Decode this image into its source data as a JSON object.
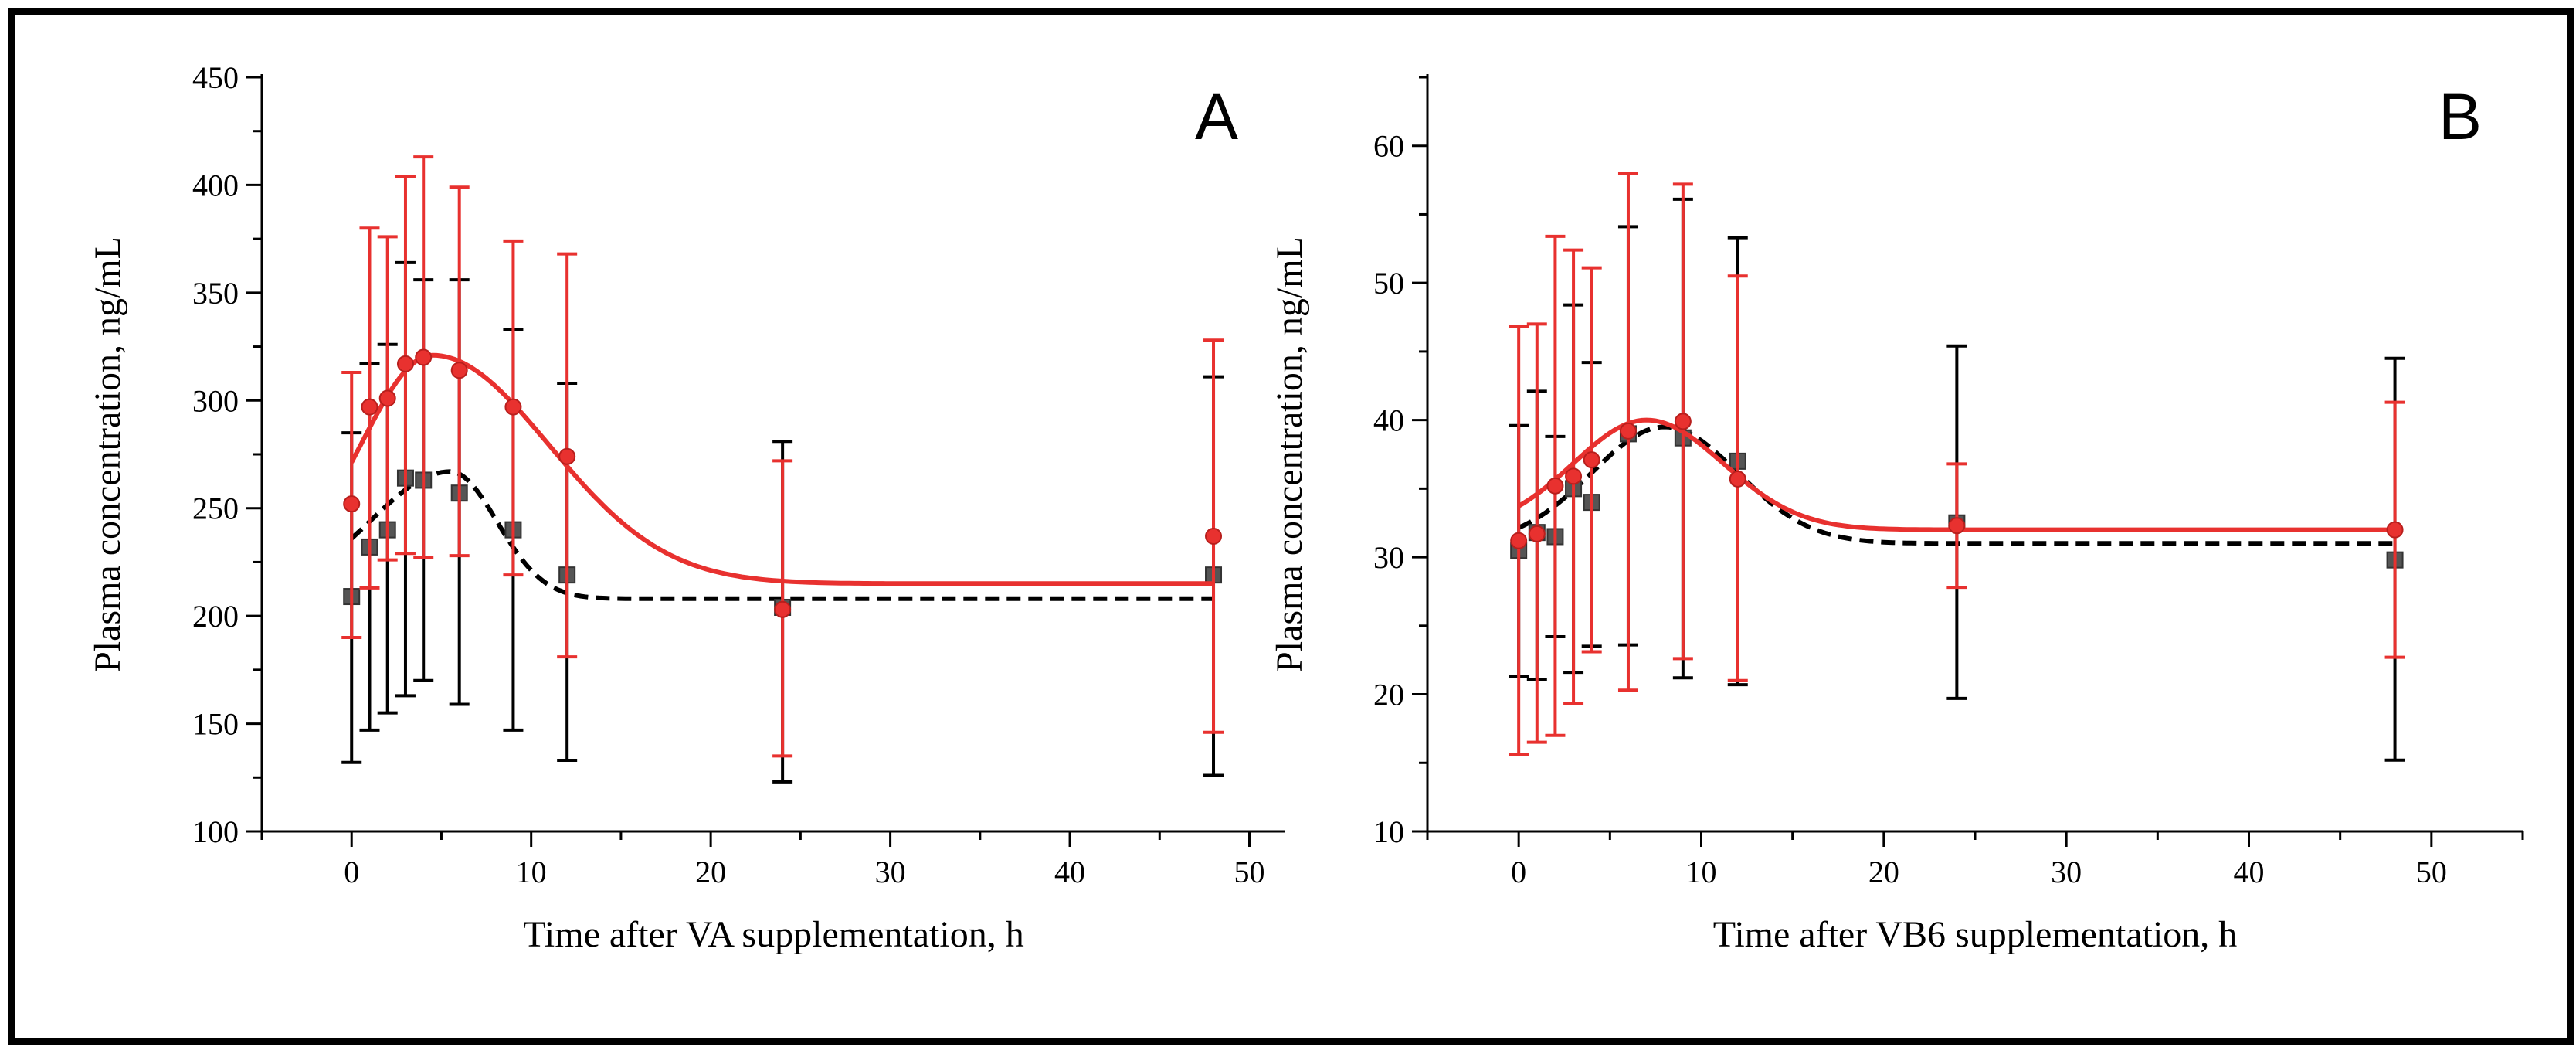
{
  "chart_data": [
    {
      "type": "line",
      "panel_label": "A",
      "xlabel": "Time after VA supplementation, h",
      "ylabel": "Plasma concentration, ng/mL",
      "xlim": [
        -5,
        52
      ],
      "ylim": [
        100,
        450
      ],
      "xticks": [
        0,
        10,
        20,
        30,
        40,
        50
      ],
      "yticks": [
        100,
        150,
        200,
        250,
        300,
        350,
        400,
        450
      ],
      "grid": false,
      "legend": null,
      "series": [
        {
          "color": "#000000",
          "marker": "square",
          "line_style": "dashed",
          "points": [
            {
              "x": 0,
              "y": 209,
              "err_low": 132,
              "err_high": 285
            },
            {
              "x": 1,
              "y": 232,
              "err_low": 147,
              "err_high": 317
            },
            {
              "x": 2,
              "y": 240,
              "err_low": 155,
              "err_high": 326
            },
            {
              "x": 3,
              "y": 264,
              "err_low": 163,
              "err_high": 364
            },
            {
              "x": 4,
              "y": 263,
              "err_low": 170,
              "err_high": 356
            },
            {
              "x": 6,
              "y": 257,
              "err_low": 159,
              "err_high": 356
            },
            {
              "x": 9,
              "y": 240,
              "err_low": 147,
              "err_high": 333
            },
            {
              "x": 12,
              "y": 219,
              "err_low": 133,
              "err_high": 308
            },
            {
              "x": 24,
              "y": 204,
              "err_low": 123,
              "err_high": 281
            },
            {
              "x": 48,
              "y": 219,
              "err_low": 126,
              "err_high": 311
            }
          ],
          "fit": {
            "baseline": 208,
            "amplitude": 59,
            "peak_x": 5.5,
            "rise_width": 4.5,
            "fall_width": 2.6
          }
        },
        {
          "color": "#e8312f",
          "marker": "circle",
          "line_style": "solid",
          "points": [
            {
              "x": 0,
              "y": 252,
              "err_low": 190,
              "err_high": 313
            },
            {
              "x": 1,
              "y": 297,
              "err_low": 213,
              "err_high": 380
            },
            {
              "x": 2,
              "y": 301,
              "err_low": 226,
              "err_high": 376
            },
            {
              "x": 3,
              "y": 317,
              "err_low": 229,
              "err_high": 404
            },
            {
              "x": 4,
              "y": 320,
              "err_low": 227,
              "err_high": 413
            },
            {
              "x": 6,
              "y": 314,
              "err_low": 228,
              "err_high": 399
            },
            {
              "x": 9,
              "y": 297,
              "err_low": 219,
              "err_high": 374
            },
            {
              "x": 12,
              "y": 274,
              "err_low": 181,
              "err_high": 368
            },
            {
              "x": 24,
              "y": 203,
              "err_low": 135,
              "err_high": 272
            },
            {
              "x": 48,
              "y": 237,
              "err_low": 146,
              "err_high": 328
            }
          ],
          "fit": {
            "baseline": 215,
            "amplitude": 106,
            "peak_x": 4.5,
            "rise_width": 4.0,
            "fall_width": 6.5
          }
        }
      ]
    },
    {
      "type": "line",
      "panel_label": "B",
      "xlabel": "Time after VB6 supplementation, h",
      "ylabel": "Plasma concentration, ng/mL",
      "xlim": [
        -5,
        55
      ],
      "ylim": [
        10,
        65
      ],
      "xticks": [
        0,
        10,
        20,
        30,
        40,
        50
      ],
      "yticks": [
        10,
        20,
        30,
        40,
        50,
        60
      ],
      "grid": false,
      "legend": null,
      "series": [
        {
          "color": "#000000",
          "marker": "square",
          "line_style": "dashed",
          "points": [
            {
              "x": 0,
              "y": 30.5,
              "err_low": 21.3,
              "err_high": 39.6
            },
            {
              "x": 1,
              "y": 31.8,
              "err_low": 21.1,
              "err_high": 42.1
            },
            {
              "x": 2,
              "y": 31.5,
              "err_low": 24.2,
              "err_high": 38.8
            },
            {
              "x": 3,
              "y": 35.0,
              "err_low": 21.6,
              "err_high": 48.4
            },
            {
              "x": 4,
              "y": 34.0,
              "err_low": 23.5,
              "err_high": 44.2
            },
            {
              "x": 6,
              "y": 39.0,
              "err_low": 23.6,
              "err_high": 54.1
            },
            {
              "x": 9,
              "y": 38.7,
              "err_low": 21.2,
              "err_high": 56.1
            },
            {
              "x": 12,
              "y": 37.0,
              "err_low": 20.7,
              "err_high": 53.3
            },
            {
              "x": 24,
              "y": 32.5,
              "err_low": 19.7,
              "err_high": 45.4
            },
            {
              "x": 48,
              "y": 29.8,
              "err_low": 15.2,
              "err_high": 44.5
            }
          ],
          "fit": {
            "baseline": 31.0,
            "amplitude": 8.5,
            "peak_x": 8.0,
            "rise_width": 4.0,
            "fall_width": 4.0
          }
        },
        {
          "color": "#e8312f",
          "marker": "circle",
          "line_style": "solid",
          "points": [
            {
              "x": 0,
              "y": 31.2,
              "err_low": 15.6,
              "err_high": 46.8
            },
            {
              "x": 1,
              "y": 31.7,
              "err_low": 16.5,
              "err_high": 47.0
            },
            {
              "x": 2,
              "y": 35.2,
              "err_low": 17.0,
              "err_high": 53.4
            },
            {
              "x": 3,
              "y": 35.9,
              "err_low": 19.3,
              "err_high": 52.4
            },
            {
              "x": 4,
              "y": 37.1,
              "err_low": 23.1,
              "err_high": 51.1
            },
            {
              "x": 6,
              "y": 39.2,
              "err_low": 20.3,
              "err_high": 58.0
            },
            {
              "x": 9,
              "y": 39.9,
              "err_low": 22.6,
              "err_high": 57.2
            },
            {
              "x": 12,
              "y": 35.7,
              "err_low": 21.0,
              "err_high": 50.5
            },
            {
              "x": 24,
              "y": 32.3,
              "err_low": 27.8,
              "err_high": 36.8
            },
            {
              "x": 48,
              "y": 32.0,
              "err_low": 22.7,
              "err_high": 41.3
            }
          ],
          "fit": {
            "baseline": 32.0,
            "amplitude": 8.0,
            "peak_x": 7.0,
            "rise_width": 4.0,
            "fall_width": 4.2
          }
        }
      ]
    }
  ]
}
